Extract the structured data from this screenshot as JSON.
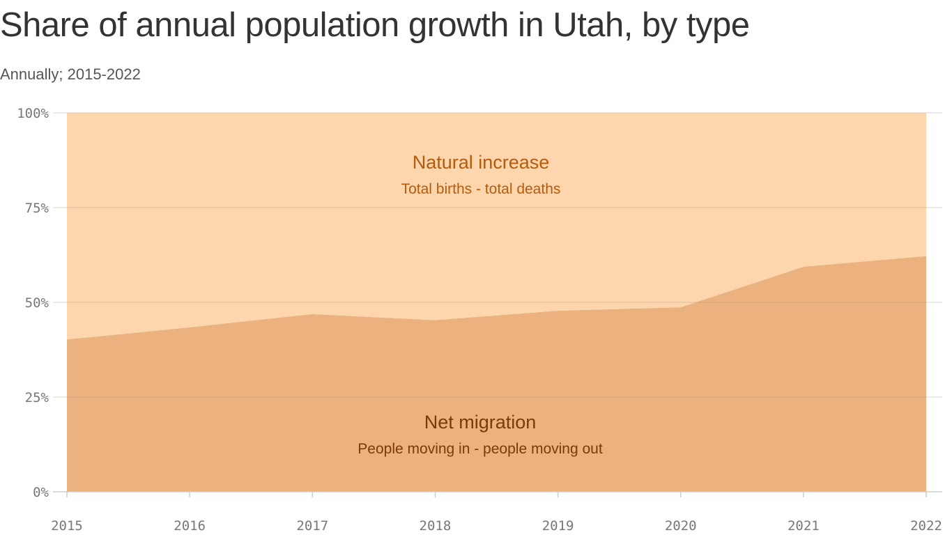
{
  "chart_data": {
    "type": "area",
    "stacked": true,
    "percent": true,
    "title": "Share of annual population growth in Utah, by type",
    "subtitle": "Annually; 2015-2022",
    "x": [
      2015,
      2016,
      2017,
      2018,
      2019,
      2020,
      2021,
      2022
    ],
    "x_tick_labels": [
      "2015",
      "2016",
      "2017",
      "2018",
      "2019",
      "2020",
      "2021",
      "2022"
    ],
    "y_tick_labels": [
      "0%",
      "25%",
      "50%",
      "75%",
      "100%"
    ],
    "ylim": [
      0,
      100
    ],
    "grid": true,
    "series": [
      {
        "name": "Net migration",
        "note": "People moving in - people moving out",
        "color": "#ebb17f",
        "label_color": "#7a3a0a",
        "values": [
          40.2,
          43.4,
          46.9,
          45.3,
          47.8,
          48.7,
          59.4,
          62.2
        ]
      },
      {
        "name": "Natural increase",
        "note": "Total births - total deaths",
        "color": "#fdd6ad",
        "label_color": "#b85a0c",
        "values": [
          59.8,
          56.6,
          53.1,
          54.7,
          52.2,
          51.3,
          40.6,
          37.8
        ]
      }
    ]
  }
}
